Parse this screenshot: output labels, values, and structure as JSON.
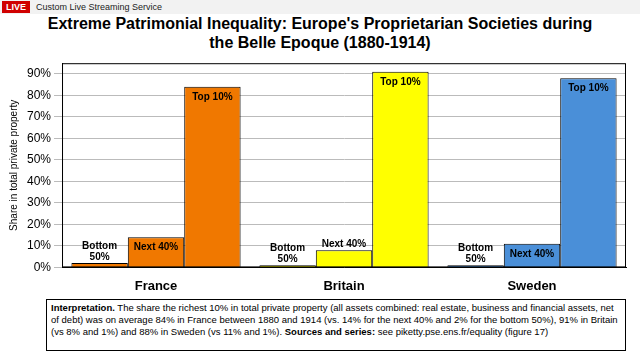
{
  "overlay": {
    "badge": "LIVE",
    "service": "Custom Live Streaming Service"
  },
  "chart_data": {
    "type": "bar",
    "title": "Extreme Patrimonial Inequality: Europe's Proprietarian Societies during the Belle Epoque (1880-1914)",
    "y_label": "Share in total private property",
    "categories": [
      "France",
      "Britain",
      "Sweden"
    ],
    "series": [
      {
        "name": "Bottom 50%",
        "values": [
          2,
          1,
          1
        ],
        "colors": [
          "#f07800",
          "#ffff00",
          "#4a8fd8"
        ]
      },
      {
        "name": "Next 40%",
        "values": [
          14,
          8,
          11
        ],
        "colors": [
          "#f07800",
          "#ffff00",
          "#4a8fd8"
        ]
      },
      {
        "name": "Top 10%",
        "values": [
          84,
          91,
          88
        ],
        "colors": [
          "#f07800",
          "#ffff00",
          "#4a8fd8"
        ]
      }
    ],
    "ylim": [
      0,
      95
    ],
    "yticks": [
      {
        "value": 0,
        "label": "0%"
      },
      {
        "value": 10,
        "label": "10%"
      },
      {
        "value": 20,
        "label": "20%"
      },
      {
        "value": 30,
        "label": "30%"
      },
      {
        "value": 40,
        "label": "40%"
      },
      {
        "value": 50,
        "label": "50%"
      },
      {
        "value": 60,
        "label": "60%"
      },
      {
        "value": 70,
        "label": "70%"
      },
      {
        "value": 80,
        "label": "80%"
      },
      {
        "value": 90,
        "label": "90%"
      }
    ],
    "grid": true,
    "note": {
      "label": "Interpretation.",
      "text": "The share the richest 10% in total private property (all assets combined: real estate, business and financial assets, net of debt) was on average 84% in France between 1880 and 1914 (vs. 14% for the next 40% and 2% for the bottom 50%), 91% in Britain (vs 8% and 1%) and 88% in Sweden (vs 11% and 1%).",
      "sources_label": "Sources and series:",
      "sources": "see piketty.pse.ens.fr/equality (figure 17)"
    }
  }
}
